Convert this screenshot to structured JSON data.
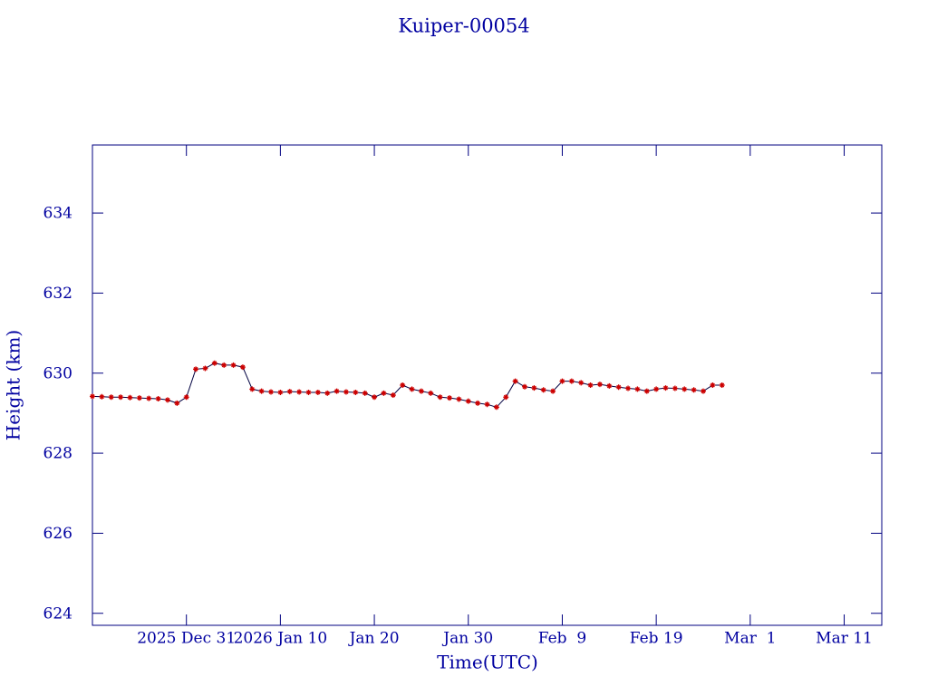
{
  "chart_data": {
    "type": "line",
    "title": "Kuiper-00054",
    "x_label": "Time(UTC)",
    "y_label": "Height (km)",
    "x": [
      "2025-12-21",
      "2025-12-22",
      "2025-12-23",
      "2025-12-24",
      "2025-12-25",
      "2025-12-26",
      "2025-12-27",
      "2025-12-28",
      "2025-12-29",
      "2025-12-30",
      "2025-12-31",
      "2026-01-01",
      "2026-01-02",
      "2026-01-03",
      "2026-01-04",
      "2026-01-05",
      "2026-01-06",
      "2026-01-07",
      "2026-01-08",
      "2026-01-09",
      "2026-01-10",
      "2026-01-11",
      "2026-01-12",
      "2026-01-13",
      "2026-01-14",
      "2026-01-15",
      "2026-01-16",
      "2026-01-17",
      "2026-01-18",
      "2026-01-19",
      "2026-01-20",
      "2026-01-21",
      "2026-01-22",
      "2026-01-23",
      "2026-01-24",
      "2026-01-25",
      "2026-01-26",
      "2026-01-27",
      "2026-01-28",
      "2026-01-29",
      "2026-01-30",
      "2026-01-31",
      "2026-02-01",
      "2026-02-02",
      "2026-02-03",
      "2026-02-04",
      "2026-02-05",
      "2026-02-06",
      "2026-02-07",
      "2026-02-08",
      "2026-02-09",
      "2026-02-10",
      "2026-02-11",
      "2026-02-12",
      "2026-02-13",
      "2026-02-14",
      "2026-02-15",
      "2026-02-16",
      "2026-02-17",
      "2026-02-18",
      "2026-02-19",
      "2026-02-20",
      "2026-02-21",
      "2026-02-22",
      "2026-02-23",
      "2026-02-24",
      "2026-02-25",
      "2026-02-26"
    ],
    "series": [
      {
        "name": "Height",
        "color": "#cc0000",
        "line_color": "#000040",
        "values": [
          629.42,
          629.41,
          629.4,
          629.4,
          629.39,
          629.38,
          629.37,
          629.36,
          629.33,
          629.25,
          629.4,
          630.1,
          630.12,
          630.25,
          630.2,
          630.2,
          630.15,
          629.6,
          629.55,
          629.53,
          629.52,
          629.54,
          629.53,
          629.52,
          629.52,
          629.5,
          629.55,
          629.53,
          629.52,
          629.5,
          629.4,
          629.5,
          629.45,
          629.7,
          629.6,
          629.55,
          629.5,
          629.4,
          629.38,
          629.35,
          629.3,
          629.25,
          629.22,
          629.15,
          629.4,
          629.8,
          629.66,
          629.63,
          629.58,
          629.55,
          629.8,
          629.8,
          629.76,
          629.7,
          629.72,
          629.68,
          629.65,
          629.62,
          629.6,
          629.55,
          629.6,
          629.63,
          629.62,
          629.6,
          629.58,
          629.55,
          629.7,
          629.7
        ]
      }
    ],
    "xlim": [
      "2025-12-21",
      "2026-03-15"
    ],
    "xticks": [
      {
        "value": "2025-12-31",
        "label": "2025 Dec 31"
      },
      {
        "value": "2026-01-10",
        "label": "2026 Jan 10"
      },
      {
        "value": "2026-01-20",
        "label": "Jan 20"
      },
      {
        "value": "2026-01-30",
        "label": "Jan 30"
      },
      {
        "value": "2026-02-09",
        "label": "Feb  9"
      },
      {
        "value": "2026-02-19",
        "label": "Feb 19"
      },
      {
        "value": "2026-03-01",
        "label": "Mar  1"
      },
      {
        "value": "2026-03-11",
        "label": "Mar 11"
      }
    ],
    "ylim": [
      623.7,
      635.7
    ],
    "yticks": [
      624,
      626,
      628,
      630,
      632,
      634
    ]
  }
}
